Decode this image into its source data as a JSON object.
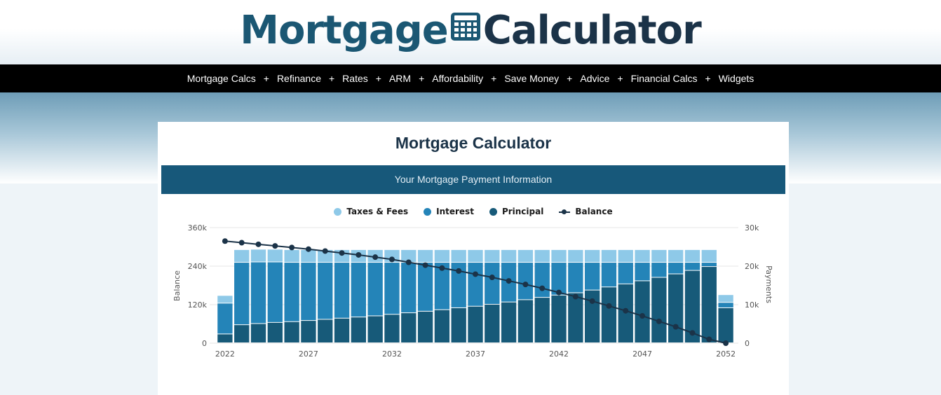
{
  "logo": {
    "word1": "Mortgage",
    "word2": "Calculator"
  },
  "nav": {
    "items": [
      "Mortgage Calcs",
      "Refinance",
      "Rates",
      "ARM",
      "Affordability",
      "Save Money",
      "Advice",
      "Financial Calcs",
      "Widgets"
    ],
    "separator": "+"
  },
  "page": {
    "title": "Mortgage Calculator",
    "info_bar": "Your Mortgage Payment Information"
  },
  "legend": [
    {
      "label": "Taxes & Fees",
      "color": "#8ec9e8",
      "marker": "dot"
    },
    {
      "label": "Interest",
      "color": "#2484b8",
      "marker": "dot"
    },
    {
      "label": "Principal",
      "color": "#175a79",
      "marker": "dot"
    },
    {
      "label": "Balance",
      "color": "#1b3348",
      "marker": "line"
    }
  ],
  "chart_data": {
    "type": "bar",
    "stacked": true,
    "categories": [
      2022,
      2023,
      2024,
      2025,
      2026,
      2027,
      2028,
      2029,
      2030,
      2031,
      2032,
      2033,
      2034,
      2035,
      2036,
      2037,
      2038,
      2039,
      2040,
      2041,
      2042,
      2043,
      2044,
      2045,
      2046,
      2047,
      2048,
      2049,
      2050,
      2051,
      2052
    ],
    "x_tick_labels": [
      "2022",
      "2027",
      "2032",
      "2037",
      "2042",
      "2047",
      "2052"
    ],
    "left_axis": {
      "label": "Balance",
      "ticks": [
        "360k",
        "240k",
        "120k",
        "0"
      ],
      "range": [
        0,
        360000
      ]
    },
    "right_axis": {
      "label": "Payments",
      "ticks": [
        "30k",
        "20k",
        "10k",
        "0"
      ],
      "range": [
        0,
        30000
      ]
    },
    "grid": true,
    "legend_position": "top",
    "series": [
      {
        "name": "Principal",
        "axis": "right",
        "color": "#175a79",
        "values": [
          2300,
          4700,
          5000,
          5300,
          5500,
          5800,
          6100,
          6400,
          6700,
          7000,
          7400,
          7800,
          8200,
          8600,
          9100,
          9500,
          10000,
          10600,
          11200,
          11800,
          12400,
          13000,
          13700,
          14500,
          15300,
          16100,
          17000,
          17900,
          18800,
          19800,
          9100
        ]
      },
      {
        "name": "Interest",
        "axis": "right",
        "color": "#2484b8",
        "values": [
          8000,
          16200,
          16000,
          15700,
          15400,
          15100,
          14800,
          14500,
          14200,
          13900,
          13500,
          13100,
          12700,
          12300,
          11800,
          11400,
          10900,
          10300,
          9700,
          9100,
          8500,
          7900,
          7200,
          6400,
          5600,
          4800,
          3900,
          3000,
          2100,
          1100,
          1400
        ]
      },
      {
        "name": "Taxes & Fees",
        "axis": "right",
        "color": "#8ec9e8",
        "values": [
          2000,
          3300,
          3300,
          3300,
          3300,
          3300,
          3300,
          3300,
          3300,
          3300,
          3300,
          3300,
          3300,
          3300,
          3300,
          3300,
          3300,
          3300,
          3300,
          3300,
          3300,
          3300,
          3300,
          3300,
          3300,
          3300,
          3300,
          3300,
          3300,
          3300,
          2000
        ]
      },
      {
        "name": "Balance",
        "axis": "left",
        "type": "line",
        "color": "#1b3348",
        "values": [
          318000,
          313000,
          308000,
          303000,
          298000,
          293000,
          287000,
          281000,
          275000,
          268000,
          261000,
          252000,
          243000,
          234000,
          225000,
          215000,
          205000,
          194000,
          183000,
          171000,
          158000,
          145000,
          131000,
          116000,
          101000,
          85000,
          68000,
          51000,
          32000,
          12000,
          0
        ]
      }
    ]
  }
}
